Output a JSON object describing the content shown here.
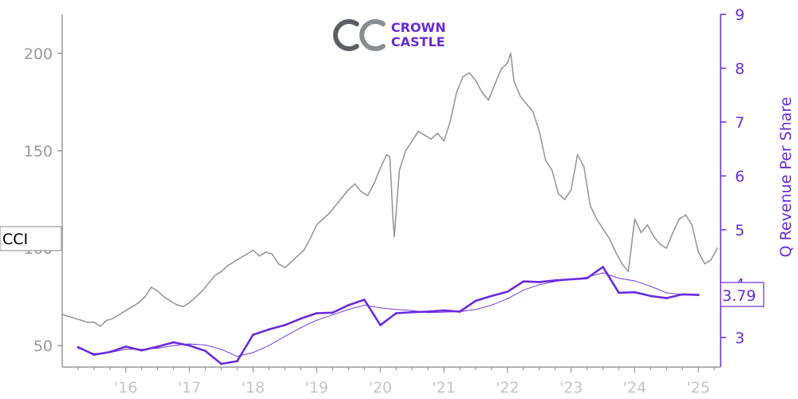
{
  "chart_data": {
    "type": "line",
    "title": "",
    "xlabel": "",
    "logo": {
      "line1": "CROWN",
      "line2": "CASTLE",
      "color": "#6a2bd6"
    },
    "x_ticks": [
      "'16",
      "'17",
      "'18",
      "'19",
      "'20",
      "'21",
      "'22",
      "'23",
      "'24",
      "'25"
    ],
    "x_range": [
      2015.0,
      2025.35
    ],
    "colors": {
      "price": "#999999",
      "revenue": "#6a2be0",
      "left_axis": "#999999",
      "right_axis": "#6a2be0",
      "label_box_text": "#000000"
    },
    "left_axis": {
      "ylabel": "",
      "ticks": [
        "50",
        "100",
        "150",
        "200"
      ],
      "tick_values": [
        50,
        100,
        150,
        200
      ],
      "ylim": [
        39,
        220
      ]
    },
    "right_axis": {
      "ylabel": "Q Revenue Per Share",
      "ticks": [
        "3",
        "4",
        "5",
        "6",
        "7",
        "8",
        "9"
      ],
      "tick_values": [
        3,
        4,
        5,
        6,
        7,
        8,
        9
      ],
      "ylim": [
        2.45,
        9.0
      ]
    },
    "price_label": "CCI",
    "revenue_last_label": "3.79",
    "series": [
      {
        "name": "CCI",
        "axis": "left",
        "x": [
          2015.0,
          2015.1,
          2015.2,
          2015.3,
          2015.4,
          2015.5,
          2015.6,
          2015.7,
          2015.8,
          2015.9,
          2016.0,
          2016.1,
          2016.2,
          2016.3,
          2016.4,
          2016.5,
          2016.6,
          2016.7,
          2016.8,
          2016.9,
          2017.0,
          2017.1,
          2017.2,
          2017.3,
          2017.4,
          2017.5,
          2017.6,
          2017.7,
          2017.8,
          2017.9,
          2018.0,
          2018.1,
          2018.2,
          2018.3,
          2018.4,
          2018.5,
          2018.6,
          2018.7,
          2018.8,
          2018.9,
          2019.0,
          2019.1,
          2019.2,
          2019.3,
          2019.4,
          2019.5,
          2019.6,
          2019.7,
          2019.8,
          2019.9,
          2020.0,
          2020.1,
          2020.15,
          2020.2,
          2020.22,
          2020.3,
          2020.4,
          2020.5,
          2020.6,
          2020.7,
          2020.8,
          2020.9,
          2021.0,
          2021.1,
          2021.2,
          2021.3,
          2021.4,
          2021.5,
          2021.6,
          2021.7,
          2021.8,
          2021.9,
          2022.0,
          2022.05,
          2022.1,
          2022.2,
          2022.3,
          2022.4,
          2022.5,
          2022.6,
          2022.7,
          2022.8,
          2022.9,
          2023.0,
          2023.1,
          2023.2,
          2023.3,
          2023.4,
          2023.5,
          2023.6,
          2023.7,
          2023.8,
          2023.9,
          2024.0,
          2024.1,
          2024.2,
          2024.3,
          2024.4,
          2024.5,
          2024.6,
          2024.7,
          2024.8,
          2024.9,
          2025.0,
          2025.1,
          2025.2,
          2025.3
        ],
        "values": [
          66,
          65,
          64,
          63,
          62,
          62,
          60,
          63,
          64,
          66,
          68,
          70,
          72,
          75,
          80,
          78,
          75,
          73,
          71,
          70,
          72,
          75,
          78,
          82,
          86,
          88,
          91,
          93,
          95,
          97,
          99,
          96,
          98,
          97,
          92,
          90,
          93,
          96,
          99,
          105,
          112,
          115,
          118,
          122,
          126,
          130,
          133,
          129,
          127,
          133,
          141,
          148,
          147,
          115,
          106,
          140,
          150,
          155,
          160,
          158,
          156,
          159,
          155,
          165,
          180,
          188,
          190,
          186,
          180,
          176,
          184,
          192,
          195,
          200,
          186,
          178,
          174,
          170,
          160,
          145,
          140,
          128,
          125,
          130,
          148,
          142,
          122,
          115,
          110,
          105,
          98,
          92,
          88,
          115,
          108,
          112,
          106,
          102,
          100,
          108,
          115,
          117,
          112,
          98,
          92,
          94,
          100
        ]
      },
      {
        "name": "Q Revenue Per Share",
        "axis": "right",
        "x": [
          2015.25,
          2015.5,
          2015.75,
          2016.0,
          2016.25,
          2016.5,
          2016.75,
          2017.0,
          2017.25,
          2017.5,
          2017.75,
          2018.0,
          2018.25,
          2018.5,
          2018.75,
          2019.0,
          2019.25,
          2019.5,
          2019.75,
          2020.0,
          2020.25,
          2020.5,
          2020.75,
          2021.0,
          2021.25,
          2021.5,
          2021.75,
          2022.0,
          2022.25,
          2022.5,
          2022.75,
          2023.0,
          2023.25,
          2023.5,
          2023.75,
          2024.0,
          2024.25,
          2024.5,
          2024.75,
          2025.0
        ],
        "values": [
          2.82,
          2.68,
          2.73,
          2.83,
          2.76,
          2.83,
          2.91,
          2.85,
          2.75,
          2.51,
          2.56,
          3.05,
          3.15,
          3.23,
          3.35,
          3.45,
          3.46,
          3.6,
          3.7,
          3.23,
          3.45,
          3.47,
          3.48,
          3.5,
          3.48,
          3.68,
          3.77,
          3.85,
          4.04,
          4.03,
          4.06,
          4.08,
          4.1,
          4.31,
          3.83,
          3.84,
          3.77,
          3.73,
          3.8,
          3.79
        ]
      },
      {
        "name": "Q Revenue Per Share (trend)",
        "axis": "right",
        "x": [
          2015.25,
          2015.5,
          2015.75,
          2016.0,
          2016.25,
          2016.5,
          2016.75,
          2017.0,
          2017.25,
          2017.5,
          2017.75,
          2018.0,
          2018.25,
          2018.5,
          2018.75,
          2019.0,
          2019.25,
          2019.5,
          2019.75,
          2020.0,
          2020.25,
          2020.5,
          2020.75,
          2021.0,
          2021.25,
          2021.5,
          2021.75,
          2022.0,
          2022.25,
          2022.5,
          2022.75,
          2023.0,
          2023.25,
          2023.5,
          2023.75,
          2024.0,
          2024.25,
          2024.5,
          2024.75,
          2025.0
        ],
        "values": [
          2.8,
          2.7,
          2.72,
          2.78,
          2.78,
          2.8,
          2.85,
          2.88,
          2.86,
          2.78,
          2.65,
          2.72,
          2.85,
          3.02,
          3.18,
          3.32,
          3.42,
          3.52,
          3.6,
          3.55,
          3.52,
          3.5,
          3.46,
          3.47,
          3.48,
          3.52,
          3.6,
          3.72,
          3.88,
          3.98,
          4.04,
          4.08,
          4.12,
          4.2,
          4.1,
          4.05,
          3.95,
          3.83,
          3.8,
          3.78
        ]
      }
    ]
  }
}
